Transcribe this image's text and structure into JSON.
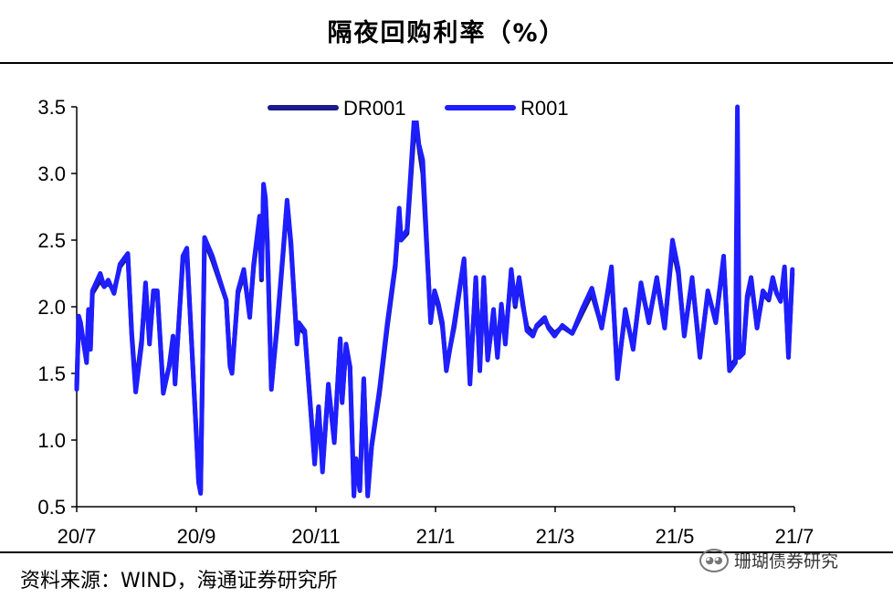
{
  "chart_data": {
    "type": "line",
    "title": "隔夜回购利率（%）",
    "ylim": [
      0.5,
      3.5
    ],
    "yticks": [
      "0.5",
      "1.0",
      "1.5",
      "2.0",
      "2.5",
      "3.0",
      "3.5"
    ],
    "xticks": [
      "20/7",
      "20/9",
      "20/11",
      "21/1",
      "21/3",
      "21/5",
      "21/7"
    ],
    "xlim": [
      "2020-07-01",
      "2021-07-01"
    ],
    "grid": false,
    "legend": "top",
    "series": [
      {
        "name": "DR001",
        "color": "#1a1a8c",
        "points": [
          [
            "2020-07-01",
            1.4
          ],
          [
            "2020-07-02",
            1.9
          ],
          [
            "2020-07-03",
            1.85
          ],
          [
            "2020-07-06",
            1.6
          ],
          [
            "2020-07-07",
            1.95
          ],
          [
            "2020-07-08",
            1.7
          ],
          [
            "2020-07-09",
            2.1
          ],
          [
            "2020-07-13",
            2.2
          ],
          [
            "2020-07-15",
            2.15
          ],
          [
            "2020-07-17",
            2.18
          ],
          [
            "2020-07-20",
            2.12
          ],
          [
            "2020-07-23",
            2.3
          ],
          [
            "2020-07-27",
            2.38
          ],
          [
            "2020-07-29",
            1.8
          ],
          [
            "2020-07-31",
            1.4
          ],
          [
            "2020-08-03",
            1.75
          ],
          [
            "2020-08-05",
            2.15
          ],
          [
            "2020-08-07",
            1.75
          ],
          [
            "2020-08-09",
            2.1
          ],
          [
            "2020-08-11",
            2.1
          ],
          [
            "2020-08-14",
            1.38
          ],
          [
            "2020-08-17",
            1.55
          ],
          [
            "2020-08-19",
            1.75
          ],
          [
            "2020-08-20",
            1.45
          ],
          [
            "2020-08-24",
            2.35
          ],
          [
            "2020-08-26",
            2.42
          ],
          [
            "2020-08-31",
            1.0
          ],
          [
            "2020-09-01",
            0.7
          ],
          [
            "2020-09-02",
            0.62
          ],
          [
            "2020-09-04",
            2.5
          ],
          [
            "2020-09-08",
            2.35
          ],
          [
            "2020-09-15",
            2.05
          ],
          [
            "2020-09-17",
            1.55
          ],
          [
            "2020-09-18",
            1.52
          ],
          [
            "2020-09-21",
            2.1
          ],
          [
            "2020-09-24",
            2.25
          ],
          [
            "2020-09-27",
            1.95
          ],
          [
            "2020-09-29",
            2.3
          ],
          [
            "2020-10-02",
            2.65
          ],
          [
            "2020-10-03",
            2.2
          ],
          [
            "2020-10-04",
            2.9
          ],
          [
            "2020-10-05",
            2.8
          ],
          [
            "2020-10-06",
            2.45
          ],
          [
            "2020-10-08",
            1.4
          ],
          [
            "2020-10-11",
            1.85
          ],
          [
            "2020-10-14",
            2.4
          ],
          [
            "2020-10-16",
            2.78
          ],
          [
            "2020-10-18",
            2.45
          ],
          [
            "2020-10-21",
            1.75
          ],
          [
            "2020-10-22",
            1.85
          ],
          [
            "2020-10-25",
            1.8
          ],
          [
            "2020-10-30",
            0.85
          ],
          [
            "2020-11-01",
            1.25
          ],
          [
            "2020-11-03",
            0.8
          ],
          [
            "2020-11-06",
            1.4
          ],
          [
            "2020-11-09",
            1.0
          ],
          [
            "2020-11-12",
            1.75
          ],
          [
            "2020-11-13",
            1.3
          ],
          [
            "2020-11-15",
            1.7
          ],
          [
            "2020-11-17",
            1.55
          ],
          [
            "2020-11-19",
            0.6
          ],
          [
            "2020-11-20",
            0.85
          ],
          [
            "2020-11-22",
            0.65
          ],
          [
            "2020-11-24",
            1.45
          ],
          [
            "2020-11-26",
            0.6
          ],
          [
            "2020-11-28",
            0.95
          ],
          [
            "2020-12-02",
            1.35
          ],
          [
            "2020-12-06",
            1.85
          ],
          [
            "2020-12-10",
            2.3
          ],
          [
            "2020-12-12",
            2.7
          ],
          [
            "2020-12-13",
            2.5
          ],
          [
            "2020-12-16",
            2.55
          ],
          [
            "2020-12-20",
            3.4
          ],
          [
            "2020-12-22",
            3.2
          ],
          [
            "2020-12-24",
            3.0
          ],
          [
            "2020-12-28",
            1.9
          ],
          [
            "2020-12-30",
            2.1
          ],
          [
            "2021-01-01",
            2.0
          ],
          [
            "2021-01-03",
            1.85
          ],
          [
            "2021-01-05",
            1.55
          ],
          [
            "2021-01-09",
            1.85
          ],
          [
            "2021-01-14",
            2.35
          ],
          [
            "2021-01-17",
            1.45
          ],
          [
            "2021-01-20",
            2.2
          ],
          [
            "2021-01-22",
            1.55
          ],
          [
            "2021-01-24",
            2.2
          ],
          [
            "2021-01-26",
            1.62
          ],
          [
            "2021-01-29",
            1.95
          ],
          [
            "2021-01-31",
            1.65
          ],
          [
            "2021-02-02",
            2.0
          ],
          [
            "2021-02-04",
            1.75
          ],
          [
            "2021-02-07",
            2.25
          ],
          [
            "2021-02-09",
            2.0
          ],
          [
            "2021-02-11",
            2.2
          ],
          [
            "2021-02-13",
            2.0
          ],
          [
            "2021-02-15",
            1.85
          ],
          [
            "2021-02-18",
            1.8
          ],
          [
            "2021-02-20",
            1.85
          ],
          [
            "2021-02-24",
            1.9
          ],
          [
            "2021-02-26",
            1.85
          ],
          [
            "2021-03-01",
            1.8
          ],
          [
            "2021-03-05",
            1.85
          ],
          [
            "2021-03-10",
            1.8
          ],
          [
            "2021-03-15",
            1.95
          ],
          [
            "2021-03-20",
            2.1
          ],
          [
            "2021-03-25",
            1.85
          ],
          [
            "2021-03-30",
            2.25
          ],
          [
            "2021-04-02",
            1.5
          ],
          [
            "2021-04-06",
            1.95
          ],
          [
            "2021-04-10",
            1.7
          ],
          [
            "2021-04-14",
            2.15
          ],
          [
            "2021-04-18",
            1.9
          ],
          [
            "2021-04-22",
            2.2
          ],
          [
            "2021-04-26",
            1.85
          ],
          [
            "2021-04-30",
            2.45
          ],
          [
            "2021-05-03",
            2.25
          ],
          [
            "2021-05-06",
            1.8
          ],
          [
            "2021-05-10",
            2.2
          ],
          [
            "2021-05-14",
            1.65
          ],
          [
            "2021-05-18",
            2.1
          ],
          [
            "2021-05-22",
            1.9
          ],
          [
            "2021-05-26",
            2.35
          ],
          [
            "2021-05-29",
            1.55
          ],
          [
            "2021-06-01",
            1.6
          ],
          [
            "2021-06-03",
            1.65
          ],
          [
            "2021-06-05",
            1.65
          ],
          [
            "2021-06-07",
            2.05
          ],
          [
            "2021-06-09",
            2.2
          ],
          [
            "2021-06-12",
            1.85
          ],
          [
            "2021-06-15",
            2.1
          ],
          [
            "2021-06-18",
            2.05
          ],
          [
            "2021-06-20",
            2.2
          ],
          [
            "2021-06-22",
            2.1
          ],
          [
            "2021-06-24",
            2.05
          ],
          [
            "2021-06-26",
            2.25
          ],
          [
            "2021-06-28",
            1.65
          ],
          [
            "2021-06-30",
            2.25
          ]
        ]
      },
      {
        "name": "R001",
        "color": "#1e1eff",
        "points": [
          [
            "2020-07-01",
            1.38
          ],
          [
            "2020-07-02",
            1.93
          ],
          [
            "2020-07-03",
            1.88
          ],
          [
            "2020-07-06",
            1.58
          ],
          [
            "2020-07-07",
            1.98
          ],
          [
            "2020-07-08",
            1.68
          ],
          [
            "2020-07-09",
            2.12
          ],
          [
            "2020-07-13",
            2.25
          ],
          [
            "2020-07-15",
            2.15
          ],
          [
            "2020-07-17",
            2.2
          ],
          [
            "2020-07-20",
            2.1
          ],
          [
            "2020-07-23",
            2.32
          ],
          [
            "2020-07-27",
            2.4
          ],
          [
            "2020-07-29",
            1.78
          ],
          [
            "2020-07-31",
            1.36
          ],
          [
            "2020-08-03",
            1.72
          ],
          [
            "2020-08-05",
            2.18
          ],
          [
            "2020-08-07",
            1.72
          ],
          [
            "2020-08-09",
            2.12
          ],
          [
            "2020-08-11",
            2.12
          ],
          [
            "2020-08-14",
            1.35
          ],
          [
            "2020-08-17",
            1.55
          ],
          [
            "2020-08-19",
            1.78
          ],
          [
            "2020-08-20",
            1.42
          ],
          [
            "2020-08-24",
            2.38
          ],
          [
            "2020-08-26",
            2.44
          ],
          [
            "2020-08-31",
            0.98
          ],
          [
            "2020-09-01",
            0.68
          ],
          [
            "2020-09-02",
            0.6
          ],
          [
            "2020-09-04",
            2.52
          ],
          [
            "2020-09-08",
            2.38
          ],
          [
            "2020-09-15",
            2.05
          ],
          [
            "2020-09-17",
            1.55
          ],
          [
            "2020-09-18",
            1.5
          ],
          [
            "2020-09-21",
            2.12
          ],
          [
            "2020-09-24",
            2.28
          ],
          [
            "2020-09-27",
            1.92
          ],
          [
            "2020-09-29",
            2.32
          ],
          [
            "2020-10-02",
            2.68
          ],
          [
            "2020-10-03",
            2.22
          ],
          [
            "2020-10-04",
            2.92
          ],
          [
            "2020-10-05",
            2.82
          ],
          [
            "2020-10-06",
            2.48
          ],
          [
            "2020-10-08",
            1.38
          ],
          [
            "2020-10-11",
            1.88
          ],
          [
            "2020-10-14",
            2.42
          ],
          [
            "2020-10-16",
            2.8
          ],
          [
            "2020-10-18",
            2.48
          ],
          [
            "2020-10-21",
            1.72
          ],
          [
            "2020-10-22",
            1.88
          ],
          [
            "2020-10-25",
            1.82
          ],
          [
            "2020-10-30",
            0.82
          ],
          [
            "2020-11-01",
            1.25
          ],
          [
            "2020-11-03",
            0.76
          ],
          [
            "2020-11-06",
            1.42
          ],
          [
            "2020-11-09",
            0.98
          ],
          [
            "2020-11-12",
            1.76
          ],
          [
            "2020-11-13",
            1.28
          ],
          [
            "2020-11-15",
            1.72
          ],
          [
            "2020-11-17",
            1.55
          ],
          [
            "2020-11-19",
            0.58
          ],
          [
            "2020-11-20",
            0.86
          ],
          [
            "2020-11-22",
            0.62
          ],
          [
            "2020-11-24",
            1.46
          ],
          [
            "2020-11-26",
            0.58
          ],
          [
            "2020-11-28",
            0.96
          ],
          [
            "2020-12-02",
            1.38
          ],
          [
            "2020-12-06",
            1.88
          ],
          [
            "2020-12-10",
            2.32
          ],
          [
            "2020-12-12",
            2.74
          ],
          [
            "2020-12-13",
            2.5
          ],
          [
            "2020-12-16",
            2.58
          ],
          [
            "2020-12-20",
            3.5
          ],
          [
            "2020-12-22",
            3.22
          ],
          [
            "2020-12-24",
            3.1
          ],
          [
            "2020-12-28",
            1.88
          ],
          [
            "2020-12-30",
            2.12
          ],
          [
            "2021-01-01",
            2.02
          ],
          [
            "2021-01-03",
            1.88
          ],
          [
            "2021-01-05",
            1.52
          ],
          [
            "2021-01-09",
            1.88
          ],
          [
            "2021-01-14",
            2.36
          ],
          [
            "2021-01-17",
            1.42
          ],
          [
            "2021-01-20",
            2.22
          ],
          [
            "2021-01-22",
            1.52
          ],
          [
            "2021-01-24",
            2.22
          ],
          [
            "2021-01-26",
            1.6
          ],
          [
            "2021-01-29",
            1.98
          ],
          [
            "2021-01-31",
            1.62
          ],
          [
            "2021-02-02",
            2.02
          ],
          [
            "2021-02-04",
            1.72
          ],
          [
            "2021-02-07",
            2.28
          ],
          [
            "2021-02-09",
            2.02
          ],
          [
            "2021-02-11",
            2.22
          ],
          [
            "2021-02-13",
            2.02
          ],
          [
            "2021-02-15",
            1.82
          ],
          [
            "2021-02-18",
            1.78
          ],
          [
            "2021-02-20",
            1.86
          ],
          [
            "2021-02-24",
            1.92
          ],
          [
            "2021-02-26",
            1.84
          ],
          [
            "2021-03-01",
            1.78
          ],
          [
            "2021-03-05",
            1.86
          ],
          [
            "2021-03-10",
            1.8
          ],
          [
            "2021-03-15",
            1.98
          ],
          [
            "2021-03-20",
            2.14
          ],
          [
            "2021-03-25",
            1.84
          ],
          [
            "2021-03-30",
            2.3
          ],
          [
            "2021-04-02",
            1.46
          ],
          [
            "2021-04-06",
            1.98
          ],
          [
            "2021-04-10",
            1.68
          ],
          [
            "2021-04-14",
            2.18
          ],
          [
            "2021-04-18",
            1.88
          ],
          [
            "2021-04-22",
            2.22
          ],
          [
            "2021-04-26",
            1.84
          ],
          [
            "2021-04-30",
            2.5
          ],
          [
            "2021-05-03",
            2.28
          ],
          [
            "2021-05-06",
            1.78
          ],
          [
            "2021-05-10",
            2.22
          ],
          [
            "2021-05-14",
            1.62
          ],
          [
            "2021-05-18",
            2.12
          ],
          [
            "2021-05-22",
            1.88
          ],
          [
            "2021-05-26",
            2.38
          ],
          [
            "2021-05-29",
            1.52
          ],
          [
            "2021-06-01",
            1.58
          ],
          [
            "2021-06-02",
            3.5
          ],
          [
            "2021-06-03",
            1.62
          ],
          [
            "2021-06-05",
            1.65
          ],
          [
            "2021-06-07",
            2.08
          ],
          [
            "2021-06-09",
            2.22
          ],
          [
            "2021-06-12",
            1.84
          ],
          [
            "2021-06-15",
            2.12
          ],
          [
            "2021-06-18",
            2.06
          ],
          [
            "2021-06-20",
            2.22
          ],
          [
            "2021-06-22",
            2.1
          ],
          [
            "2021-06-24",
            2.04
          ],
          [
            "2021-06-26",
            2.3
          ],
          [
            "2021-06-28",
            1.62
          ],
          [
            "2021-06-30",
            2.28
          ]
        ]
      }
    ]
  },
  "footer": {
    "source": "资料来源：WIND，海通证券研究所",
    "watermark": "珊瑚债券研究"
  }
}
